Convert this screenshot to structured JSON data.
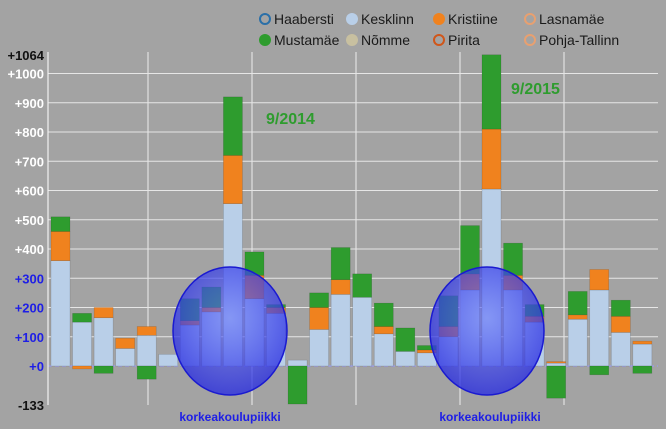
{
  "chart_data": {
    "type": "bar",
    "stacked": true,
    "diverging": true,
    "ylim": [
      -133,
      1064
    ],
    "y_ticks": [
      "-133",
      "+0",
      "+100",
      "+200",
      "+300",
      "+400",
      "+500",
      "+600",
      "+700",
      "+800",
      "+900",
      "+1000",
      "+1064"
    ],
    "grid": true,
    "legend_position": "top",
    "legend": [
      {
        "name": "Haabersti",
        "color": "#2a6fa8",
        "style": "ring"
      },
      {
        "name": "Kesklinn",
        "color": "#b9cfe8",
        "style": "dot"
      },
      {
        "name": "Kristiine",
        "color": "#f0821e",
        "style": "dot"
      },
      {
        "name": "Lasnamäe",
        "color": "#e8a070",
        "style": "ring"
      },
      {
        "name": "Mustamäe",
        "color": "#2e9c2e",
        "style": "dot"
      },
      {
        "name": "Nõmme",
        "color": "#c8c0a0",
        "style": "dot"
      },
      {
        "name": "Pirita",
        "color": "#d0561a",
        "style": "ring"
      },
      {
        "name": "Pohja-Tallinn",
        "color": "#e8a070",
        "style": "ring"
      }
    ],
    "segment_colors": {
      "Kesklinn": "#b9cfe8",
      "Kristiine": "#f0821e",
      "Mustamäe": "#2e9c2e"
    },
    "bars": [
      {
        "Kesklinn": 360,
        "Kristiine": 100,
        "Mustamäe": 50
      },
      {
        "Kesklinn": 150,
        "Kristiine": -10,
        "Mustamäe": 30
      },
      {
        "Kesklinn": 165,
        "Kristiine": 35,
        "Mustamäe": -25
      },
      {
        "Kesklinn": 60,
        "Kristiine": 35,
        "Mustamäe": 0
      },
      {
        "Kesklinn": 105,
        "Kristiine": 30,
        "Mustamäe": -45
      },
      {
        "Kesklinn": 40,
        "Kristiine": 0,
        "Mustamäe": 0
      },
      {
        "Kesklinn": 140,
        "Kristiine": 15,
        "Mustamäe": 75
      },
      {
        "Kesklinn": 185,
        "Kristiine": 15,
        "Mustamäe": 70
      },
      {
        "Kesklinn": 555,
        "Kristiine": 165,
        "Mustamäe": 200
      },
      {
        "Kesklinn": 230,
        "Kristiine": 80,
        "Mustamäe": 80
      },
      {
        "Kesklinn": 180,
        "Kristiine": 20,
        "Mustamäe": 10
      },
      {
        "Kesklinn": 20,
        "Kristiine": 0,
        "Mustamäe": -130
      },
      {
        "Kesklinn": 125,
        "Kristiine": 75,
        "Mustamäe": 50
      },
      {
        "Kesklinn": 245,
        "Kristiine": 50,
        "Mustamäe": 110
      },
      {
        "Kesklinn": 235,
        "Kristiine": 0,
        "Mustamäe": 80
      },
      {
        "Kesklinn": 110,
        "Kristiine": 25,
        "Mustamäe": 80
      },
      {
        "Kesklinn": 50,
        "Kristiine": 0,
        "Mustamäe": 80
      },
      {
        "Kesklinn": 45,
        "Kristiine": 10,
        "Mustamäe": 15
      },
      {
        "Kesklinn": 100,
        "Kristiine": 35,
        "Mustamäe": 105
      },
      {
        "Kesklinn": 260,
        "Kristiine": 55,
        "Mustamäe": 165
      },
      {
        "Kesklinn": 605,
        "Kristiine": 205,
        "Mustamäe": 254
      },
      {
        "Kesklinn": 260,
        "Kristiine": 50,
        "Mustamäe": 110
      },
      {
        "Kesklinn": 150,
        "Kristiine": 20,
        "Mustamäe": 40
      },
      {
        "Kesklinn": 10,
        "Kristiine": 5,
        "Mustamäe": -110
      },
      {
        "Kesklinn": 160,
        "Kristiine": 15,
        "Mustamäe": 80
      },
      {
        "Kesklinn": 260,
        "Kristiine": 70,
        "Mustamäe": -30
      },
      {
        "Kesklinn": 115,
        "Kristiine": 55,
        "Mustamäe": 55
      },
      {
        "Kesklinn": 75,
        "Kristiine": 10,
        "Mustamäe": -25
      }
    ],
    "annotations": [
      "9/2014",
      "9/2015"
    ],
    "highlight_captions": [
      "korkeakoulupiikki",
      "korkeakoulupiikki"
    ]
  }
}
